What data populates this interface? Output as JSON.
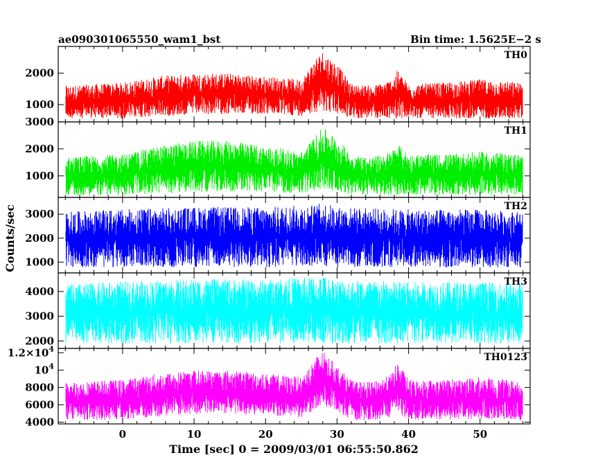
{
  "chart_data": {
    "type": "line",
    "title_left": "ae090301065550_wam1_bst",
    "title_right": "Bin time: 1.5625E−2 s",
    "xlabel": "Time [sec] 0 = 2009/03/01 06:55:50.862",
    "ylabel": "Counts/sec",
    "xlim": [
      -9,
      57
    ],
    "x_ticks": [
      0,
      10,
      20,
      30,
      40,
      50
    ],
    "x_data_range": [
      -8,
      56
    ],
    "bin_time": 0.015625,
    "panels": [
      {
        "name": "TH0",
        "color": "#ff0000",
        "ylim": [
          450,
          2850
        ],
        "y_ticks": [
          1000,
          2000
        ],
        "tick_labels": [
          "1000",
          "2000"
        ],
        "envelope": {
          "x": [
            -8,
            0,
            5,
            10,
            15,
            20,
            25,
            27,
            28,
            30,
            32,
            35,
            37.5,
            38.5,
            40,
            45,
            50,
            56
          ],
          "lower": [
            560,
            560,
            620,
            680,
            700,
            700,
            640,
            760,
            800,
            700,
            560,
            560,
            560,
            560,
            560,
            560,
            560,
            560
          ],
          "upper": [
            1600,
            1700,
            1900,
            2000,
            2000,
            1900,
            1800,
            2500,
            2700,
            2300,
            1650,
            1600,
            1800,
            2100,
            1650,
            1700,
            1800,
            1700
          ]
        }
      },
      {
        "name": "TH1",
        "color": "#00ee00",
        "ylim": [
          200,
          3000
        ],
        "y_ticks": [
          1000,
          2000,
          3000
        ],
        "tick_labels": [
          "1000",
          "2000",
          "3000"
        ],
        "envelope": {
          "x": [
            -8,
            0,
            5,
            10,
            15,
            20,
            25,
            27,
            28,
            30,
            32,
            35,
            37.5,
            38.5,
            40,
            45,
            50,
            56
          ],
          "lower": [
            280,
            280,
            330,
            400,
            420,
            400,
            340,
            450,
            500,
            420,
            300,
            280,
            280,
            280,
            280,
            280,
            280,
            280
          ],
          "upper": [
            1700,
            1800,
            2100,
            2300,
            2300,
            2100,
            1900,
            2500,
            2800,
            2400,
            1800,
            1700,
            1900,
            2200,
            1800,
            1800,
            1900,
            1800
          ]
        }
      },
      {
        "name": "TH2",
        "color": "#0000ff",
        "ylim": [
          550,
          3700
        ],
        "y_ticks": [
          1000,
          2000,
          3000
        ],
        "tick_labels": [
          "1000",
          "2000",
          "3000"
        ],
        "envelope": {
          "x": [
            -8,
            0,
            10,
            20,
            27,
            28,
            30,
            40,
            50,
            56
          ],
          "lower": [
            780,
            780,
            780,
            780,
            800,
            800,
            780,
            780,
            780,
            780
          ],
          "upper": [
            3100,
            3200,
            3300,
            3300,
            3400,
            3500,
            3300,
            3200,
            3200,
            3100
          ]
        }
      },
      {
        "name": "TH3",
        "color": "#00ffff",
        "ylim": [
          1700,
          4750
        ],
        "y_ticks": [
          2000,
          3000,
          4000
        ],
        "tick_labels": [
          "2000",
          "3000",
          "4000"
        ],
        "envelope": {
          "x": [
            -8,
            0,
            10,
            20,
            27,
            28,
            30,
            40,
            50,
            56
          ],
          "lower": [
            1900,
            1900,
            1900,
            1900,
            1900,
            1900,
            1900,
            1900,
            1900,
            1900
          ],
          "upper": [
            4300,
            4400,
            4500,
            4500,
            4600,
            4650,
            4500,
            4400,
            4400,
            4300
          ]
        }
      },
      {
        "name": "TH0123",
        "color": "#ff00ff",
        "ylim": [
          3800,
          12500
        ],
        "y_ticks": [
          4000,
          6000,
          8000,
          10000,
          12000
        ],
        "tick_labels": [
          "4000",
          "6000",
          "8000",
          "10^4",
          "1.2×10^4"
        ],
        "envelope": {
          "x": [
            -8,
            0,
            5,
            10,
            15,
            20,
            25,
            27,
            28,
            30,
            32,
            35,
            37.5,
            38.5,
            40,
            45,
            50,
            56
          ],
          "lower": [
            4200,
            4300,
            4600,
            4900,
            5000,
            4800,
            4500,
            5500,
            6000,
            5200,
            4300,
            4200,
            4600,
            5000,
            4300,
            4300,
            4400,
            4200
          ],
          "upper": [
            8600,
            8900,
            9600,
            10000,
            10000,
            9600,
            9200,
            11500,
            12200,
            10500,
            8800,
            8600,
            9500,
            11000,
            8900,
            8900,
            9200,
            8700
          ]
        }
      }
    ],
    "grid": false,
    "legend": "none"
  }
}
